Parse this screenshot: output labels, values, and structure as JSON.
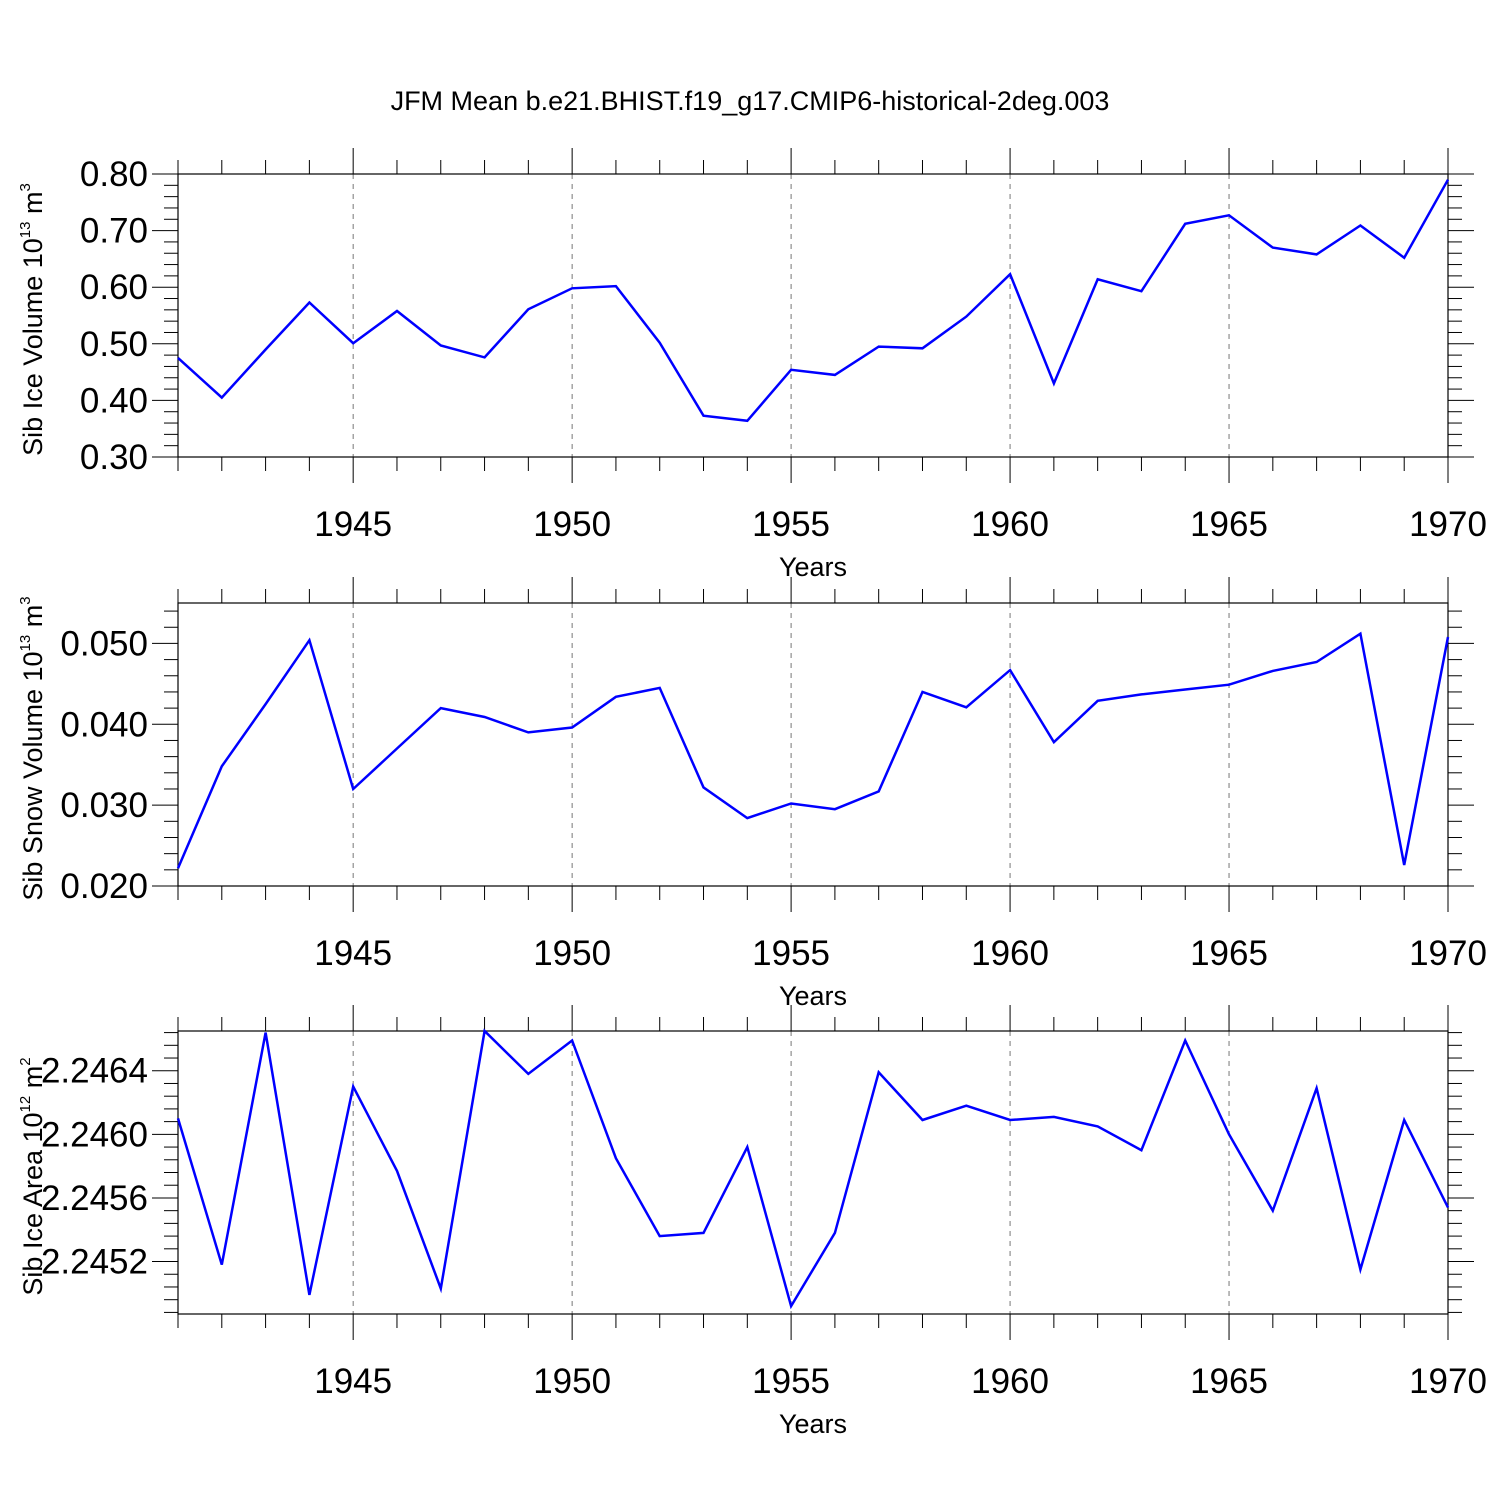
{
  "title": "JFM Mean b.e21.BHIST.f19_g17.CMIP6-historical-2deg.003",
  "line_color": "#0000ff",
  "chart_data": [
    {
      "type": "line",
      "xlabel": "Years",
      "ylabel": {
        "base": "Sib Ice Volume 10",
        "exp1": "13",
        "mid": " m",
        "exp2": "3"
      },
      "xlim": [
        1941,
        1970
      ],
      "ylim": [
        0.3,
        0.8
      ],
      "yticks": [
        "0.30",
        "0.40",
        "0.50",
        "0.60",
        "0.70",
        "0.80"
      ],
      "xticks": [
        "1945",
        "1950",
        "1955",
        "1960",
        "1965",
        "1970"
      ],
      "x": [
        1941,
        1942,
        1943,
        1944,
        1945,
        1946,
        1947,
        1948,
        1949,
        1950,
        1951,
        1952,
        1953,
        1954,
        1955,
        1956,
        1957,
        1958,
        1959,
        1960,
        1961,
        1962,
        1963,
        1964,
        1965,
        1966,
        1967,
        1968,
        1969,
        1970
      ],
      "values": [
        0.475,
        0.405,
        0.49,
        0.573,
        0.501,
        0.558,
        0.497,
        0.476,
        0.561,
        0.598,
        0.602,
        0.502,
        0.373,
        0.364,
        0.454,
        0.445,
        0.495,
        0.492,
        0.548,
        0.623,
        0.43,
        0.614,
        0.593,
        0.712,
        0.727,
        0.67,
        0.658,
        0.709,
        0.652,
        0.79
      ]
    },
    {
      "type": "line",
      "xlabel": "Years",
      "ylabel": {
        "base": "Sib Snow Volume 10",
        "exp1": "13",
        "mid": " m",
        "exp2": "3"
      },
      "xlim": [
        1941,
        1970
      ],
      "ylim": [
        0.02,
        0.055
      ],
      "yticks": [
        "0.020",
        "0.030",
        "0.040",
        "0.050"
      ],
      "xticks": [
        "1945",
        "1950",
        "1955",
        "1960",
        "1965",
        "1970"
      ],
      "x": [
        1941,
        1942,
        1943,
        1944,
        1945,
        1946,
        1947,
        1948,
        1949,
        1950,
        1951,
        1952,
        1953,
        1954,
        1955,
        1956,
        1957,
        1958,
        1959,
        1960,
        1961,
        1962,
        1963,
        1964,
        1965,
        1966,
        1967,
        1968,
        1969,
        1970
      ],
      "values": [
        0.0222,
        0.0348,
        0.0425,
        0.0504,
        0.032,
        0.037,
        0.042,
        0.0409,
        0.039,
        0.0396,
        0.0434,
        0.0445,
        0.0322,
        0.0284,
        0.0302,
        0.0295,
        0.0317,
        0.044,
        0.0421,
        0.0467,
        0.0378,
        0.0429,
        0.0437,
        0.0443,
        0.0449,
        0.0466,
        0.0477,
        0.0512,
        0.0226,
        0.0508
      ]
    },
    {
      "type": "line",
      "xlabel": "Years",
      "ylabel": {
        "base": "Sib Ice Area 10",
        "exp1": "12",
        "mid": " m",
        "exp2": "2"
      },
      "xlim": [
        1941,
        1970
      ],
      "ylim": [
        2.24487,
        2.24665
      ],
      "yticks": [
        "2.2452",
        "2.2456",
        "2.2460",
        "2.2464"
      ],
      "xticks": [
        "1945",
        "1950",
        "1955",
        "1960",
        "1965",
        "1970"
      ],
      "x": [
        1941,
        1942,
        1943,
        1944,
        1945,
        1946,
        1947,
        1948,
        1949,
        1950,
        1951,
        1952,
        1953,
        1954,
        1955,
        1956,
        1957,
        1958,
        1959,
        1960,
        1961,
        1962,
        1963,
        1964,
        1965,
        1966,
        1967,
        1968,
        1969,
        1970
      ],
      "values": [
        2.2461,
        2.24518,
        2.24664,
        2.24499,
        2.2463,
        2.24577,
        2.24503,
        2.24665,
        2.24638,
        2.24659,
        2.24585,
        2.24536,
        2.24538,
        2.24592,
        2.24492,
        2.24538,
        2.24639,
        2.24609,
        2.24618,
        2.24609,
        2.24611,
        2.24605,
        2.2459,
        2.24659,
        2.246,
        2.24552,
        2.24629,
        2.24515,
        2.24609,
        2.24554
      ]
    }
  ]
}
